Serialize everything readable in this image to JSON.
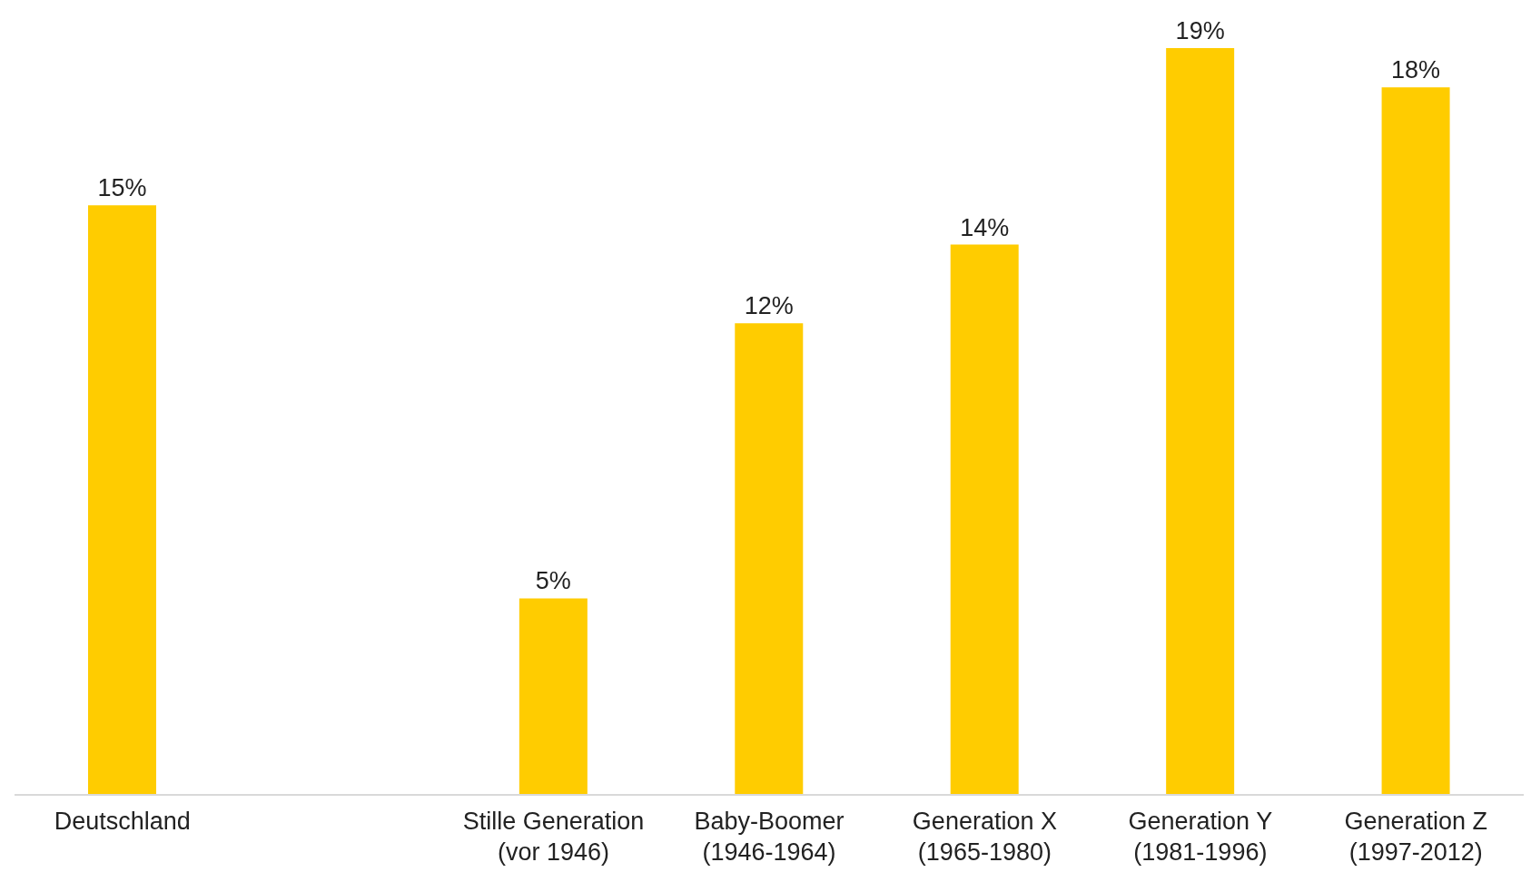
{
  "chart_data": {
    "type": "bar",
    "categories": [
      "Deutschland",
      null,
      "Stille Generation\n(vor 1946)",
      "Baby-Boomer\n(1946-1964)",
      "Generation X\n(1965-1980)",
      "Generation Y\n(1981-1996)",
      "Generation Z\n(1997-2012)"
    ],
    "values": [
      15,
      null,
      5,
      12,
      14,
      19,
      18
    ],
    "value_labels": [
      "15%",
      null,
      "5%",
      "12%",
      "14%",
      "19%",
      "18%"
    ],
    "color": "#ffcc00"
  }
}
